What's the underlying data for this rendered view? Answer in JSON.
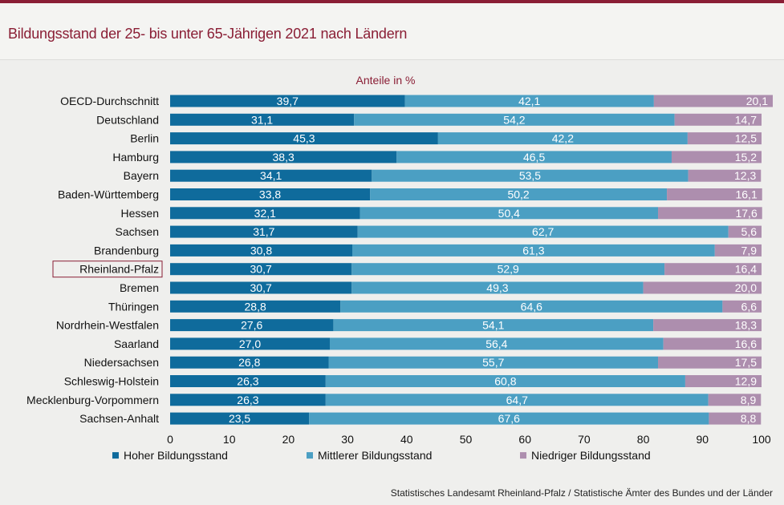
{
  "title": "Bildungsstand der 25- bis unter 65-Jährigen 2021 nach Ländern",
  "source": "Statistisches Landesamt Rheinland-Pfalz  / Statistische Ämter des Bundes und der Länder",
  "colors": {
    "title": "#8a1e35",
    "hoch": "#0f6b9c",
    "mittel": "#4b9fc3",
    "niedrig": "#ad8eae",
    "highlight_box": "#8a1e35"
  },
  "chart_data": {
    "type": "bar",
    "orientation": "horizontal",
    "stacked": true,
    "subtitle": "Anteile in %",
    "categories": [
      "OECD-Durchschnitt",
      "Deutschland",
      "Berlin",
      "Hamburg",
      "Bayern",
      "Baden-Württemberg",
      "Hessen",
      "Sachsen",
      "Brandenburg",
      "Rheinland-Pfalz",
      "Bremen",
      "Thüringen",
      "Nordrhein-Westfalen",
      "Saarland",
      "Niedersachsen",
      "Schleswig-Holstein",
      "Mecklenburg-Vorpommern",
      "Sachsen-Anhalt"
    ],
    "highlighted_category": "Rheinland-Pfalz",
    "series": [
      {
        "name": "Hoher Bildungsstand",
        "color": "#0f6b9c",
        "values": [
          39.7,
          31.1,
          45.3,
          38.3,
          34.1,
          33.8,
          32.1,
          31.7,
          30.8,
          30.7,
          30.7,
          28.8,
          27.6,
          27.0,
          26.8,
          26.3,
          26.3,
          23.5
        ],
        "labels": [
          "39,7",
          "31,1",
          "45,3",
          "38,3",
          "34,1",
          "33,8",
          "32,1",
          "31,7",
          "30,8",
          "30,7",
          "30,7",
          "28,8",
          "27,6",
          "27,0",
          "26,8",
          "26,3",
          "26,3",
          "23,5"
        ]
      },
      {
        "name": "Mittlerer Bildungsstand",
        "color": "#4b9fc3",
        "values": [
          42.1,
          54.2,
          42.2,
          46.5,
          53.5,
          50.2,
          50.4,
          62.7,
          61.3,
          52.9,
          49.3,
          64.6,
          54.1,
          56.4,
          55.7,
          60.8,
          64.7,
          67.6
        ],
        "labels": [
          "42,1",
          "54,2",
          "42,2",
          "46,5",
          "53,5",
          "50,2",
          "50,4",
          "62,7",
          "61,3",
          "52,9",
          "49,3",
          "64,6",
          "54,1",
          "56,4",
          "55,7",
          "60,8",
          "64,7",
          "67,6"
        ]
      },
      {
        "name": "Niedriger Bildungsstand",
        "color": "#ad8eae",
        "values": [
          20.1,
          14.7,
          12.5,
          15.2,
          12.3,
          16.1,
          17.6,
          5.6,
          7.9,
          16.4,
          20.0,
          6.6,
          18.3,
          16.6,
          17.5,
          12.9,
          8.9,
          8.8
        ],
        "labels": [
          "20,1",
          "14,7",
          "12,5",
          "15,2",
          "12,3",
          "16,1",
          "17,6",
          "5,6",
          "7,9",
          "16,4",
          "20,0",
          "6,6",
          "18,3",
          "16,6",
          "17,5",
          "12,9",
          "8,9",
          "8,8"
        ]
      }
    ],
    "xlim": [
      0,
      100
    ],
    "xticks": [
      "0",
      "10",
      "20",
      "30",
      "40",
      "50",
      "60",
      "70",
      "80",
      "90",
      "100"
    ],
    "grid": false,
    "legend_position": "bottom"
  }
}
